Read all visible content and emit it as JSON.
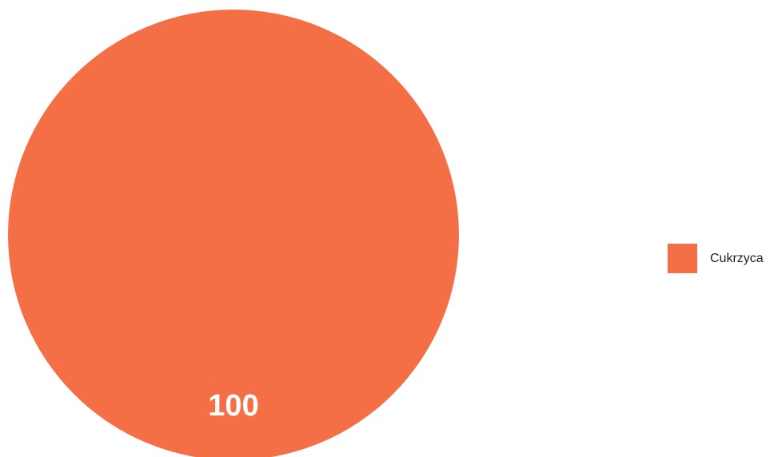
{
  "chart_data": {
    "type": "pie",
    "slices": [
      {
        "label": "Cukrzyca",
        "value": 100,
        "color": "#f46f45"
      }
    ],
    "data_labels": [
      "100"
    ],
    "legend_position": "right"
  }
}
